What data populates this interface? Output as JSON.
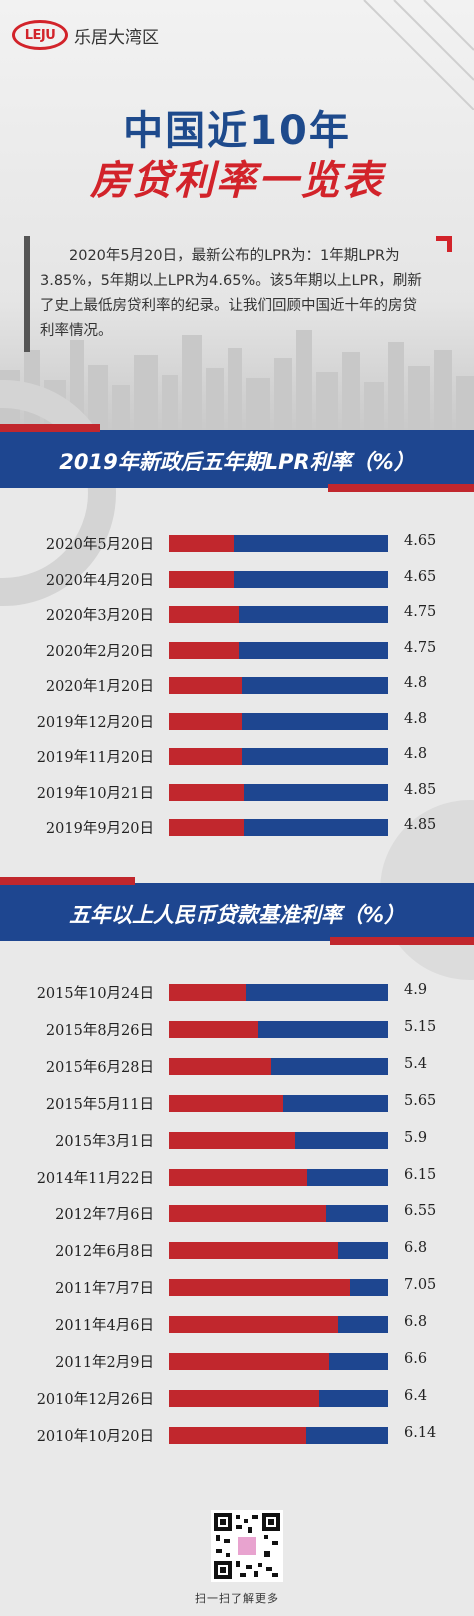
{
  "brand": {
    "logo_mark": "LEJU",
    "name": "乐居大湾区"
  },
  "title": {
    "line1": "中国近10年",
    "line2": "房贷利率一览表"
  },
  "intro": "2020年5月20日，最新公布的LPR为：1年期LPR为3.85%，5年期以上LPR为4.65%。该5年期以上LPR，刷新了史上最低房贷利率的纪录。让我们回顾中国近十年的房贷利率情况。",
  "colors": {
    "blue": "#1e4690",
    "red": "#c1272d",
    "title_blue": "#1e4a8c",
    "title_red": "#d2232a"
  },
  "footer": {
    "qr_caption": "扫一扫了解更多",
    "qr_icon": "qr-code-icon"
  },
  "chart_data": [
    {
      "type": "bar",
      "title": "2019年新政后五年期LPR利率（%）",
      "categories": [
        "2020年5月20日",
        "2020年4月20日",
        "2020年3月20日",
        "2020年2月20日",
        "2020年1月20日",
        "2019年12月20日",
        "2019年11月20日",
        "2019年10月21日",
        "2019年9月20日"
      ],
      "values": [
        4.65,
        4.65,
        4.75,
        4.75,
        4.8,
        4.8,
        4.8,
        4.85,
        4.85
      ],
      "value_labels": [
        "4.65",
        "4.65",
        "4.75",
        "4.75",
        "4.8",
        "4.8",
        "4.8",
        "4.85",
        "4.85"
      ],
      "xlabel": "",
      "ylabel": ""
    },
    {
      "type": "bar",
      "title": "五年以上人民币贷款基准利率（%）",
      "categories": [
        "2015年10月24日",
        "2015年8月26日",
        "2015年6月28日",
        "2015年5月11日",
        "2015年3月1日",
        "2014年11月22日",
        "2012年7月6日",
        "2012年6月8日",
        "2011年7月7日",
        "2011年4月6日",
        "2011年2月9日",
        "2010年12月26日",
        "2010年10月20日"
      ],
      "values": [
        4.9,
        5.15,
        5.4,
        5.65,
        5.9,
        6.15,
        6.55,
        6.8,
        7.05,
        6.8,
        6.6,
        6.4,
        6.14
      ],
      "value_labels": [
        "4.9",
        "5.15",
        "5.4",
        "5.65",
        "5.9",
        "6.15",
        "6.55",
        "6.8",
        "7.05",
        "6.8",
        "6.6",
        "6.4",
        "6.14"
      ],
      "xlabel": "",
      "ylabel": ""
    }
  ]
}
